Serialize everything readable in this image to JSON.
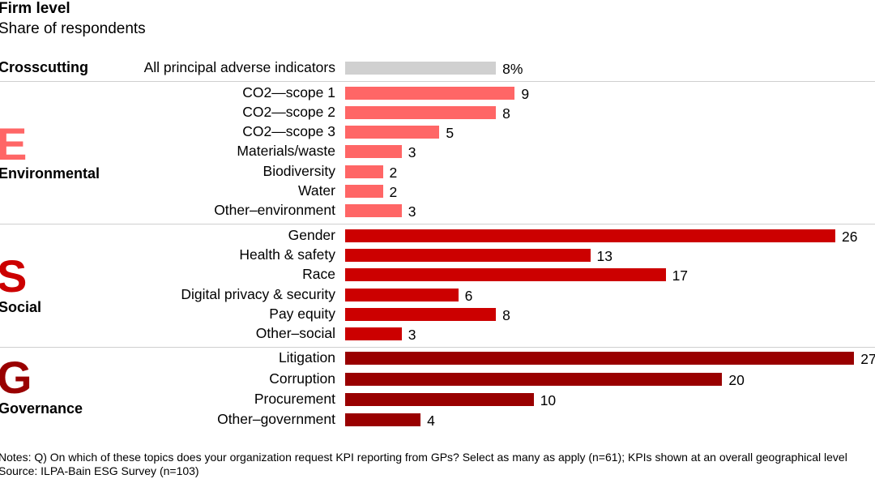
{
  "title": "Firm level",
  "subtitle": "Share of respondents",
  "notes": "Notes: Q) On which of these topics does your organization request KPI reporting from GPs? Select as many as apply (n=61); KPIs shown at an overall geographical level",
  "source": "Source: ILPA-Bain ESG Survey (n=103)",
  "groups": [
    {
      "letter": "",
      "label": "Crosscutting",
      "color": "#d0d0d0"
    },
    {
      "letter": "E",
      "label": "Environmental",
      "color": "#ff6666"
    },
    {
      "letter": "S",
      "label": "Social",
      "color": "#cc0000"
    },
    {
      "letter": "G",
      "label": "Governance",
      "color": "#990000"
    }
  ],
  "chart_data": {
    "type": "bar",
    "orientation": "horizontal",
    "title": "Firm level",
    "subtitle": "Share of respondents",
    "unit": "%",
    "xlim": [
      0,
      27
    ],
    "grid": false,
    "categories": [
      "All principal adverse indicators",
      "CO2—scope 1",
      "CO2—scope 2",
      "CO2—scope 3",
      "Materials/waste",
      "Biodiversity",
      "Water",
      "Other–environment",
      "Gender",
      "Health & safety",
      "Race",
      "Digital privacy & security",
      "Pay equity",
      "Other–social",
      "Litigation",
      "Corruption",
      "Procurement",
      "Other–government"
    ],
    "values": [
      8,
      9,
      8,
      5,
      3,
      2,
      2,
      3,
      26,
      13,
      17,
      6,
      8,
      3,
      27,
      20,
      10,
      4
    ],
    "value_labels": [
      "8%",
      "9",
      "8",
      "5",
      "3",
      "2",
      "2",
      "3",
      "26",
      "13",
      "17",
      "6",
      "8",
      "3",
      "27",
      "20",
      "10",
      "4"
    ],
    "group_index": [
      0,
      1,
      1,
      1,
      1,
      1,
      1,
      1,
      2,
      2,
      2,
      2,
      2,
      2,
      3,
      3,
      3,
      3
    ]
  }
}
